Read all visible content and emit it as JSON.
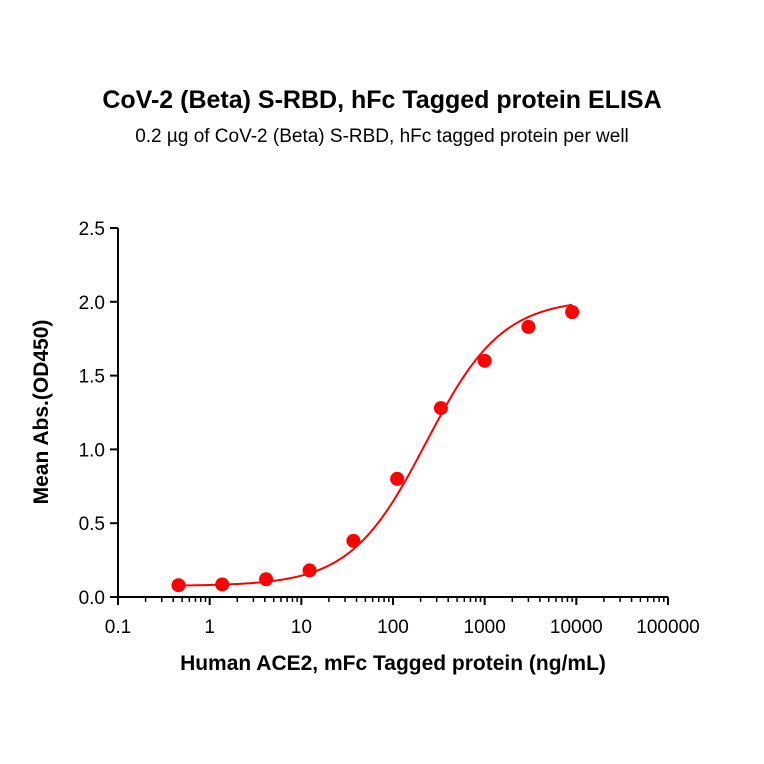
{
  "chart_data": {
    "type": "scatter",
    "title": "CoV-2 (Beta) S-RBD, hFc Tagged protein ELISA",
    "subtitle": "0.2 µg of CoV-2 (Beta) S-RBD, hFc tagged protein per well",
    "xlabel": "Human ACE2, mFc Tagged protein (ng/mL)",
    "ylabel": "Mean Abs.(OD450)",
    "x_scale": "log",
    "xlim": [
      0.1,
      100000
    ],
    "ylim": [
      0.0,
      2.5
    ],
    "x_ticks": [
      "0.1",
      "1",
      "10",
      "100",
      "1000",
      "10000",
      "100000"
    ],
    "y_ticks": [
      "0.0",
      "0.5",
      "1.0",
      "1.5",
      "2.0",
      "2.5"
    ],
    "grid": false,
    "legend": "none",
    "color": "#ff0000",
    "series": [
      {
        "x": [
          0.457,
          1.37,
          4.12,
          12.3,
          37.0,
          111,
          333,
          1000,
          3000,
          9000
        ],
        "y": [
          0.08,
          0.085,
          0.12,
          0.18,
          0.38,
          0.8,
          1.28,
          1.6,
          1.83,
          1.93
        ],
        "fit": "4PL"
      }
    ]
  }
}
